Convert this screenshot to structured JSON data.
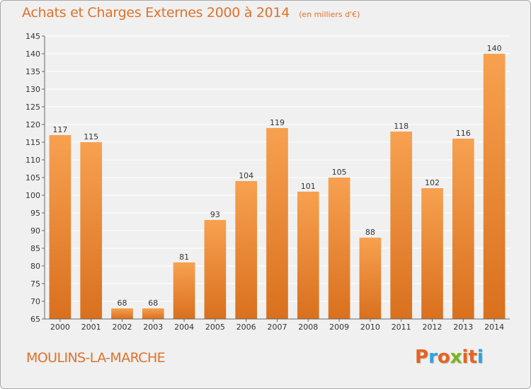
{
  "header": {
    "title": "Achats et Charges Externes 2000 à 2014",
    "unit": "(en milliers d'€)"
  },
  "footer": {
    "place": "MOULINS-LA-MARCHE",
    "brand": "Proxiti"
  },
  "colors": {
    "accent": "#e0722a",
    "bar_top": "#f7a150",
    "bar_bottom": "#d9701e",
    "background": "#f0f0f0",
    "grid": "#ffffff",
    "brand_letters": [
      "#e8621f",
      "#2fa3dc",
      "#e8621f",
      "#7ab51d",
      "#e8621f",
      "#e8621f",
      "#2fa3dc"
    ]
  },
  "chart_data": {
    "type": "bar",
    "title": "Achats et Charges Externes 2000 à 2014",
    "subtitle": "(en milliers d'€)",
    "xlabel": "",
    "ylabel": "",
    "categories": [
      "2000",
      "2001",
      "2002",
      "2003",
      "2004",
      "2005",
      "2006",
      "2007",
      "2008",
      "2009",
      "2010",
      "2011",
      "2012",
      "2013",
      "2014"
    ],
    "values": [
      117,
      115,
      68,
      68,
      81,
      93,
      104,
      119,
      101,
      105,
      88,
      118,
      102,
      116,
      140
    ],
    "ylim": [
      65,
      145
    ],
    "yticks": [
      65,
      70,
      75,
      80,
      85,
      90,
      95,
      100,
      105,
      110,
      115,
      120,
      125,
      130,
      135,
      140,
      145
    ],
    "grid": true,
    "legend": "none"
  }
}
